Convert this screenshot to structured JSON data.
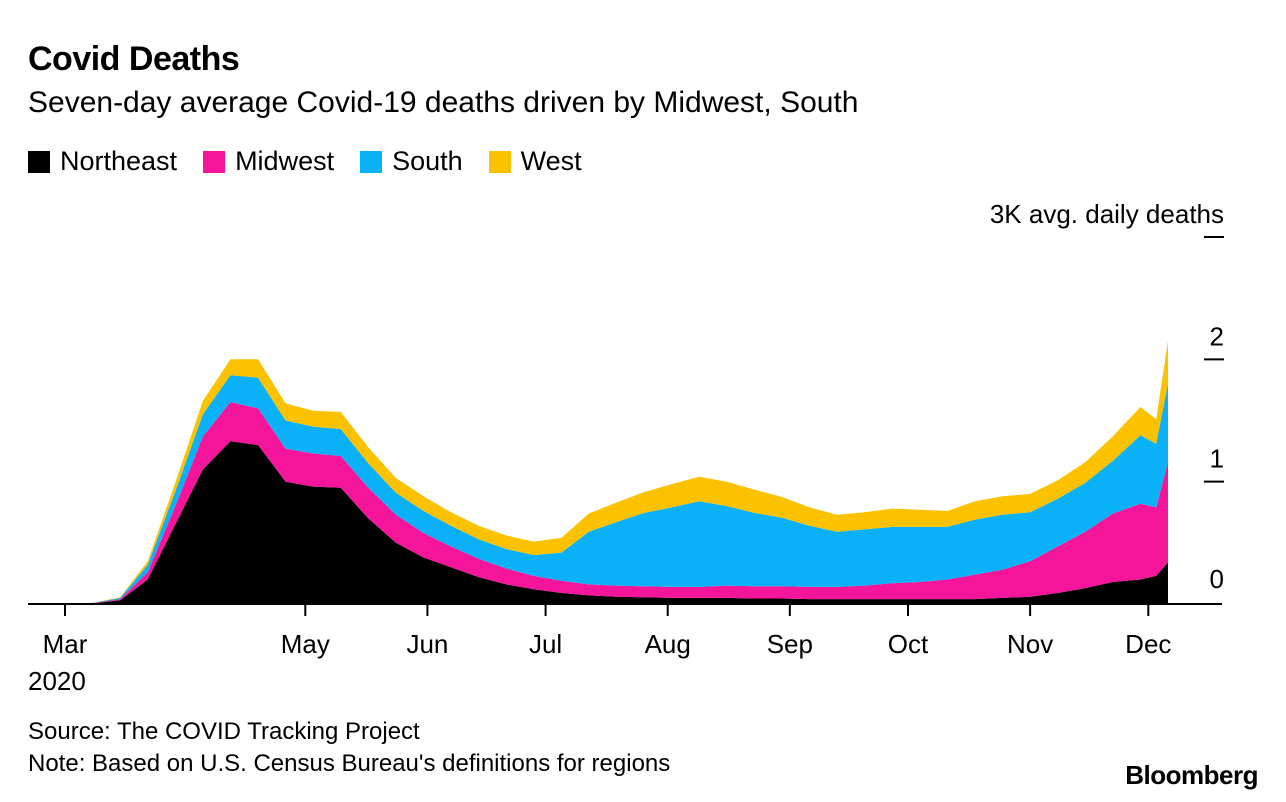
{
  "header": {
    "title": "Covid Deaths",
    "subtitle": "Seven-day average Covid-19 deaths driven by Midwest, South"
  },
  "legend": [
    {
      "label": "Northeast",
      "color": "#000000"
    },
    {
      "label": "Midwest",
      "color": "#f5159b"
    },
    {
      "label": "South",
      "color": "#0bb1f6"
    },
    {
      "label": "West",
      "color": "#fcc200"
    }
  ],
  "footer": {
    "source": "Source: The COVID Tracking Project",
    "note": "Note: Based on U.S. Census Bureau's definitions for regions",
    "logo": "Bloomberg"
  },
  "chart_data": {
    "type": "area",
    "stacked": true,
    "ylabel": "3K avg. daily deaths",
    "ylim": [
      0,
      3000
    ],
    "y_ticks": [
      {
        "value": 0,
        "label": "0"
      },
      {
        "value": 1000,
        "label": "1"
      },
      {
        "value": 2000,
        "label": "2"
      },
      {
        "value": 3000,
        "label": "3K avg. daily deaths"
      }
    ],
    "x_ticks": [
      {
        "date": "2020-03-01",
        "label": "Mar"
      },
      {
        "date": "2020-05-01",
        "label": "May"
      },
      {
        "date": "2020-06-01",
        "label": "Jun"
      },
      {
        "date": "2020-07-01",
        "label": "Jul"
      },
      {
        "date": "2020-08-01",
        "label": "Aug"
      },
      {
        "date": "2020-09-01",
        "label": "Sep"
      },
      {
        "date": "2020-10-01",
        "label": "Oct"
      },
      {
        "date": "2020-11-01",
        "label": "Nov"
      },
      {
        "date": "2020-12-01",
        "label": "Dec"
      }
    ],
    "year_label": "2020",
    "x": [
      "2020-03-01",
      "2020-03-08",
      "2020-03-15",
      "2020-03-22",
      "2020-03-29",
      "2020-04-05",
      "2020-04-12",
      "2020-04-19",
      "2020-04-26",
      "2020-05-03",
      "2020-05-10",
      "2020-05-17",
      "2020-05-24",
      "2020-05-31",
      "2020-06-07",
      "2020-06-14",
      "2020-06-21",
      "2020-06-28",
      "2020-07-05",
      "2020-07-12",
      "2020-07-19",
      "2020-07-26",
      "2020-08-02",
      "2020-08-09",
      "2020-08-16",
      "2020-08-23",
      "2020-08-30",
      "2020-09-06",
      "2020-09-13",
      "2020-09-20",
      "2020-09-27",
      "2020-10-04",
      "2020-10-11",
      "2020-10-18",
      "2020-10-25",
      "2020-11-01",
      "2020-11-08",
      "2020-11-15",
      "2020-11-22",
      "2020-11-29",
      "2020-12-03",
      "2020-12-06"
    ],
    "series": [
      {
        "name": "Northeast",
        "values": [
          0,
          5,
          30,
          200,
          650,
          1100,
          1330,
          1300,
          1000,
          960,
          950,
          700,
          500,
          380,
          300,
          220,
          160,
          120,
          90,
          70,
          60,
          55,
          50,
          50,
          50,
          45,
          45,
          40,
          40,
          40,
          40,
          40,
          40,
          40,
          50,
          60,
          90,
          130,
          180,
          200,
          230,
          340
        ]
      },
      {
        "name": "Midwest",
        "values": [
          0,
          2,
          10,
          60,
          150,
          270,
          320,
          300,
          270,
          270,
          260,
          250,
          230,
          200,
          170,
          150,
          130,
          110,
          100,
          90,
          90,
          90,
          90,
          90,
          100,
          100,
          100,
          100,
          100,
          110,
          130,
          140,
          160,
          200,
          230,
          290,
          380,
          460,
          560,
          620,
          560,
          820
        ]
      },
      {
        "name": "South",
        "values": [
          0,
          2,
          10,
          60,
          120,
          180,
          220,
          250,
          230,
          220,
          220,
          200,
          180,
          180,
          170,
          160,
          160,
          170,
          230,
          430,
          520,
          600,
          650,
          700,
          650,
          600,
          560,
          500,
          450,
          460,
          460,
          450,
          430,
          450,
          450,
          400,
          390,
          400,
          430,
          560,
          520,
          640
        ]
      },
      {
        "name": "West",
        "values": [
          0,
          1,
          5,
          30,
          70,
          110,
          130,
          150,
          140,
          130,
          140,
          130,
          120,
          120,
          110,
          110,
          110,
          110,
          120,
          150,
          160,
          170,
          190,
          200,
          200,
          190,
          170,
          150,
          140,
          140,
          150,
          140,
          130,
          150,
          150,
          150,
          150,
          170,
          200,
          230,
          200,
          350
        ]
      }
    ]
  }
}
